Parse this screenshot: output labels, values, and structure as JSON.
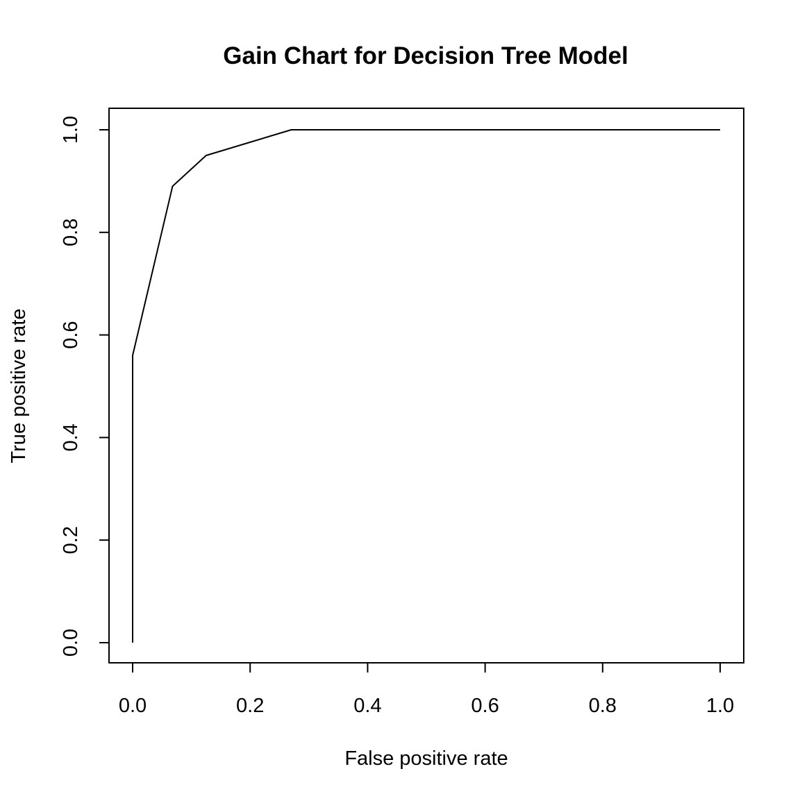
{
  "chart_data": {
    "type": "line",
    "title": "Gain Chart for Decision Tree Model",
    "xlabel": "False positive rate",
    "ylabel": "True positive rate",
    "xlim": [
      0,
      1
    ],
    "ylim": [
      0,
      1
    ],
    "x_ticks": [
      0.0,
      0.2,
      0.4,
      0.6,
      0.8,
      1.0
    ],
    "y_ticks": [
      0.0,
      0.2,
      0.4,
      0.6,
      0.8,
      1.0
    ],
    "x_tick_labels": [
      "0.0",
      "0.2",
      "0.4",
      "0.6",
      "0.8",
      "1.0"
    ],
    "y_tick_labels": [
      "0.0",
      "0.2",
      "0.4",
      "0.6",
      "0.8",
      "1.0"
    ],
    "grid": false,
    "legend": "none",
    "line_color": "#000000",
    "series": [
      {
        "x": [
          0.0,
          0.0,
          0.068,
          0.125,
          0.27,
          1.0
        ],
        "y": [
          0.0,
          0.56,
          0.89,
          0.95,
          1.0,
          1.0
        ]
      }
    ]
  }
}
